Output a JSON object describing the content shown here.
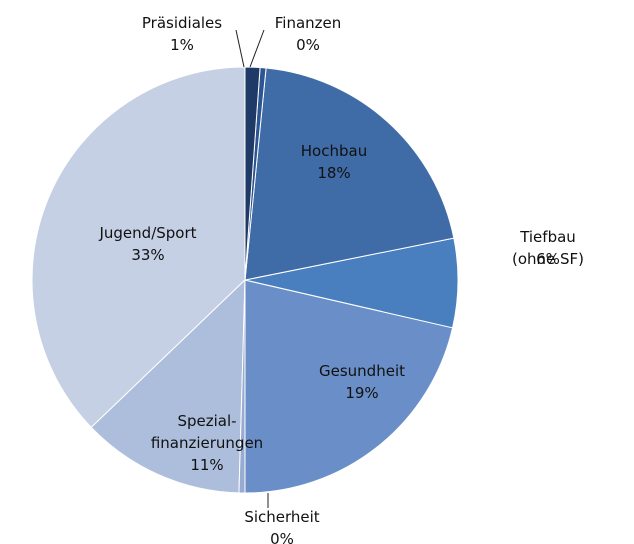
{
  "chart_data": {
    "type": "pie",
    "categories": [
      "Präsidiales",
      "Finanzen",
      "Hochbau",
      "Tiefbau (ohne SF)",
      "Gesundheit",
      "Sicherheit",
      "Spezial-\nfinanzierungen",
      "Jugend/Sport"
    ],
    "values": [
      1,
      0.4,
      18,
      6,
      19,
      0.4,
      11,
      33
    ],
    "value_labels": [
      "1%",
      "0%",
      "18%",
      "6%",
      "19%",
      "0%",
      "11%",
      "33%"
    ],
    "colors": [
      "#1f3a66",
      "#2c5592",
      "#3f6ba6",
      "#4a7fbf",
      "#6a8fc8",
      "#98acd2",
      "#adbedc",
      "#c5d0e4"
    ]
  }
}
